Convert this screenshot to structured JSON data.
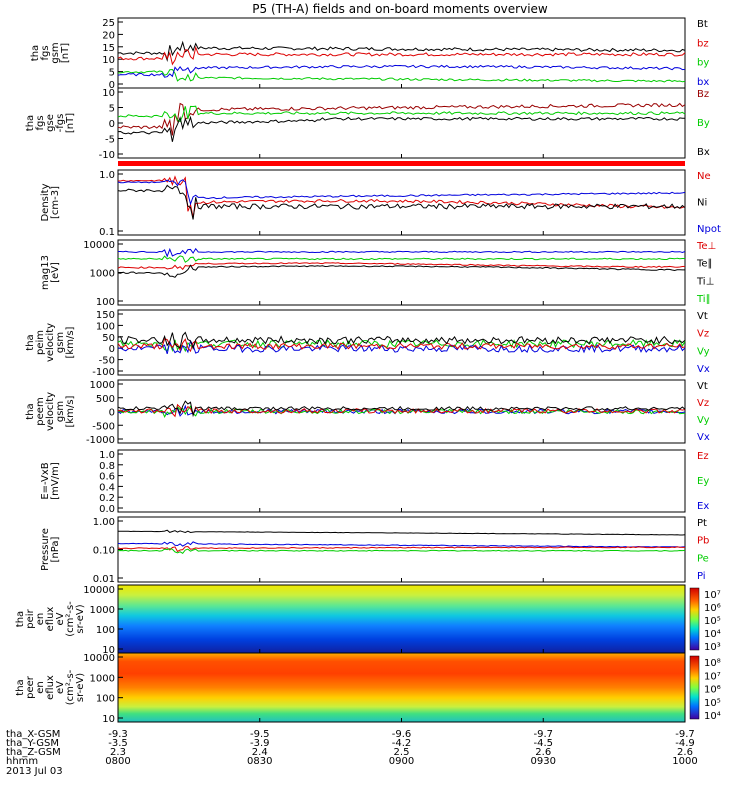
{
  "title": "P5 (TH-A) fields and on-board moments overview",
  "colors": {
    "black": "#000000",
    "red": "#dd0000",
    "green": "#00cc00",
    "blue": "#0000dd",
    "darkred": "#990000"
  },
  "chart_data": [
    {
      "type": "line",
      "panel": "fgs_gsm",
      "ylabel": [
        "tha",
        "fgs",
        "gsm",
        "[nT]"
      ],
      "yticks": [
        "25",
        "20",
        "15",
        "10",
        "5",
        "0"
      ],
      "ylim": [
        0,
        26
      ],
      "legend": [
        {
          "label": "Bt",
          "color": "black"
        },
        {
          "label": "bz",
          "color": "red"
        },
        {
          "label": "by",
          "color": "green"
        },
        {
          "label": "bx",
          "color": "blue"
        }
      ]
    },
    {
      "type": "line",
      "panel": "fgs_gse",
      "ylabel": [
        "tha",
        "fgs",
        "gse",
        "-fgs",
        "[nT]"
      ],
      "yticks": [
        "10",
        "5",
        "0",
        "-5",
        "-10"
      ],
      "ylim": [
        -14,
        11
      ],
      "legend": [
        {
          "label": "Bz",
          "color": "darkred"
        },
        {
          "label": "By",
          "color": "green"
        },
        {
          "label": "Bx",
          "color": "black"
        }
      ]
    },
    {
      "type": "line",
      "panel": "density",
      "ylabel": [
        "Density",
        "[cm-3]"
      ],
      "yticks": [
        "1.0",
        "0.1"
      ],
      "scale": "log",
      "ylim": [
        0.1,
        1.2
      ],
      "legend": [
        {
          "label": "Ne",
          "color": "red"
        },
        {
          "label": "Ni",
          "color": "black"
        },
        {
          "label": "Npot",
          "color": "blue"
        }
      ]
    },
    {
      "type": "line",
      "panel": "temperature",
      "ylabel": [
        "mag13",
        "[eV]"
      ],
      "yticks": [
        "10000",
        "1000",
        "100"
      ],
      "scale": "log",
      "ylim": [
        100,
        15000
      ],
      "legend": [
        {
          "label": "Te⊥",
          "color": "red"
        },
        {
          "label": "Te∥",
          "color": "black"
        },
        {
          "label": "Ti⊥",
          "color": "black"
        },
        {
          "label": "Ti∥",
          "color": "green"
        }
      ]
    },
    {
      "type": "line",
      "panel": "peim_velocity",
      "ylabel": [
        "tha",
        "peim",
        "velocity",
        "gsm",
        "[km/s]"
      ],
      "yticks": [
        "150",
        "100",
        "50",
        "0",
        "-50",
        "-100"
      ],
      "ylim": [
        -110,
        160
      ],
      "legend": [
        {
          "label": "Vt",
          "color": "black"
        },
        {
          "label": "Vz",
          "color": "red"
        },
        {
          "label": "Vy",
          "color": "green"
        },
        {
          "label": "Vx",
          "color": "blue"
        }
      ]
    },
    {
      "type": "line",
      "panel": "peem_velocity",
      "ylabel": [
        "tha",
        "peem",
        "velocity",
        "gsm",
        "[km/s]"
      ],
      "yticks": [
        "1000",
        "500",
        "0",
        "-500",
        "-1000"
      ],
      "ylim": [
        -1050,
        1050
      ],
      "legend": [
        {
          "label": "Vt",
          "color": "black"
        },
        {
          "label": "Vz",
          "color": "red"
        },
        {
          "label": "Vy",
          "color": "green"
        },
        {
          "label": "Vx",
          "color": "blue"
        }
      ]
    },
    {
      "type": "line",
      "panel": "efield",
      "ylabel": [
        "E=-VxB",
        "[mV/m]"
      ],
      "yticks": [
        "1.0",
        "0.8",
        "0.6",
        "0.4",
        "0.2",
        "0.0"
      ],
      "ylim": [
        0,
        1
      ],
      "legend": [
        {
          "label": "Ez",
          "color": "red"
        },
        {
          "label": "Ey",
          "color": "green"
        },
        {
          "label": "Ex",
          "color": "blue"
        }
      ]
    },
    {
      "type": "line",
      "panel": "pressure",
      "ylabel": [
        "Pressure",
        "[nPa]"
      ],
      "yticks": [
        "1.00",
        "0.10",
        "0.01"
      ],
      "scale": "log",
      "ylim": [
        0.01,
        1.2
      ],
      "legend": [
        {
          "label": "Pt",
          "color": "black"
        },
        {
          "label": "Pb",
          "color": "red"
        },
        {
          "label": "Pe",
          "color": "green"
        },
        {
          "label": "Pi",
          "color": "blue"
        }
      ]
    },
    {
      "type": "heatmap",
      "panel": "peir_spectrogram",
      "ylabel": [
        "tha",
        "peir",
        "en",
        "eflux",
        "eV",
        "(cm²-s-",
        "sr-eV)"
      ],
      "yticks": [
        "10000",
        "1000",
        "100",
        "10"
      ],
      "colorbar_ticks": [
        "10⁷",
        "10⁶",
        "10⁵",
        "10⁴",
        "10³"
      ]
    },
    {
      "type": "heatmap",
      "panel": "peer_spectrogram",
      "ylabel": [
        "tha",
        "peer",
        "en",
        "eflux",
        "eV",
        "(cm²-s-",
        "sr-eV)"
      ],
      "yticks": [
        "10000",
        "1000",
        "100",
        "10"
      ],
      "colorbar_ticks": [
        "10⁸",
        "10⁷",
        "10⁶",
        "10⁵",
        "10⁴"
      ]
    }
  ],
  "footer": {
    "rows": [
      {
        "label": "tha_X-GSM",
        "values": [
          "-9.3",
          "-9.5",
          "-9.6",
          "-9.7",
          "-9.7"
        ]
      },
      {
        "label": "tha_Y-GSM",
        "values": [
          "-3.5",
          "-3.9",
          "-4.2",
          "-4.5",
          "-4.9"
        ]
      },
      {
        "label": "tha_Z-GSM",
        "values": [
          "2.3",
          "2.4",
          "2.5",
          "2.6",
          "2.6"
        ]
      },
      {
        "label": "hhmm",
        "values": [
          "0800",
          "0830",
          "0900",
          "0930",
          "1000"
        ]
      }
    ],
    "date": "2013 Jul 03"
  }
}
